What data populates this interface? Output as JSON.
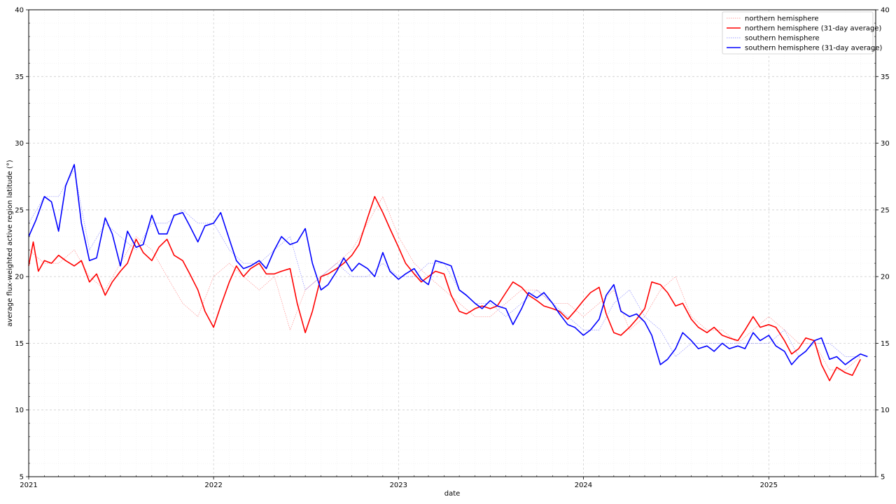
{
  "chart_data": {
    "type": "line",
    "title": "",
    "xlabel": "date",
    "ylabel": "average flux-weighted active region latitude (°)",
    "xlim": [
      "2021-01-01",
      "2025-07-31"
    ],
    "ylim": [
      5,
      40
    ],
    "x_ticks": [
      "2021",
      "2022",
      "2023",
      "2024",
      "2025"
    ],
    "y_ticks": [
      5,
      10,
      15,
      20,
      25,
      30,
      35,
      40
    ],
    "grid": true,
    "right_axis_duplicate": true,
    "legend_position": "top-right",
    "series": [
      {
        "name": "northern hemisphere",
        "color": "#ff0000",
        "style": "dotted-thin",
        "x": [
          "2021-01-01",
          "2021-02-01",
          "2021-03-01",
          "2021-04-01",
          "2021-05-01",
          "2021-06-01",
          "2021-07-01",
          "2021-08-01",
          "2021-09-01",
          "2021-10-01",
          "2021-11-01",
          "2021-12-01",
          "2022-01-01",
          "2022-02-01",
          "2022-03-01",
          "2022-04-01",
          "2022-05-01",
          "2022-06-01",
          "2022-07-01",
          "2022-08-01",
          "2022-09-01",
          "2022-10-01",
          "2022-11-01",
          "2022-12-01",
          "2023-01-01",
          "2023-02-01",
          "2023-03-01",
          "2023-04-01",
          "2023-05-01",
          "2023-06-01",
          "2023-07-01",
          "2023-08-01",
          "2023-09-01",
          "2023-10-01",
          "2023-11-01",
          "2023-12-01",
          "2024-01-01",
          "2024-02-01",
          "2024-03-01",
          "2024-04-01",
          "2024-05-01",
          "2024-06-01",
          "2024-07-01",
          "2024-08-01",
          "2024-09-01",
          "2024-10-01",
          "2024-11-01",
          "2024-12-01",
          "2025-01-01",
          "2025-02-01",
          "2025-03-01",
          "2025-04-01",
          "2025-05-01",
          "2025-06-01",
          "2025-07-01"
        ],
        "values": [
          22,
          21,
          21,
          22,
          20,
          19,
          21,
          23,
          22,
          20,
          18,
          17,
          20,
          21,
          20,
          19,
          20,
          16,
          19,
          20,
          21,
          22,
          24,
          26,
          23,
          21,
          20,
          19,
          18,
          17,
          17,
          18,
          19,
          19,
          18,
          18,
          17,
          18,
          19,
          16,
          17,
          19,
          20,
          17,
          16,
          16,
          15,
          16,
          17,
          16,
          15,
          15,
          13,
          13,
          14
        ]
      },
      {
        "name": "northern hemisphere (31-day average)",
        "color": "#ff0000",
        "style": "solid",
        "x": [
          "2021-01-01",
          "2021-01-10",
          "2021-01-20",
          "2021-02-01",
          "2021-02-15",
          "2021-03-01",
          "2021-03-15",
          "2021-04-01",
          "2021-04-15",
          "2021-05-01",
          "2021-05-15",
          "2021-06-01",
          "2021-06-15",
          "2021-07-01",
          "2021-07-15",
          "2021-08-01",
          "2021-08-15",
          "2021-09-01",
          "2021-09-15",
          "2021-10-01",
          "2021-10-15",
          "2021-11-01",
          "2021-11-15",
          "2021-12-01",
          "2021-12-15",
          "2022-01-01",
          "2022-01-15",
          "2022-02-01",
          "2022-02-15",
          "2022-03-01",
          "2022-03-15",
          "2022-04-01",
          "2022-04-15",
          "2022-05-01",
          "2022-05-15",
          "2022-06-01",
          "2022-06-15",
          "2022-07-01",
          "2022-07-15",
          "2022-08-01",
          "2022-08-15",
          "2022-09-01",
          "2022-09-15",
          "2022-10-01",
          "2022-10-15",
          "2022-11-01",
          "2022-11-15",
          "2022-12-01",
          "2022-12-15",
          "2023-01-01",
          "2023-01-15",
          "2023-02-01",
          "2023-02-15",
          "2023-03-01",
          "2023-03-15",
          "2023-04-01",
          "2023-04-15",
          "2023-05-01",
          "2023-05-15",
          "2023-06-01",
          "2023-06-15",
          "2023-07-01",
          "2023-07-15",
          "2023-08-01",
          "2023-08-15",
          "2023-09-01",
          "2023-09-15",
          "2023-10-01",
          "2023-10-15",
          "2023-11-01",
          "2023-11-15",
          "2023-12-01",
          "2023-12-15",
          "2024-01-01",
          "2024-01-15",
          "2024-02-01",
          "2024-02-15",
          "2024-03-01",
          "2024-03-15",
          "2024-04-01",
          "2024-04-15",
          "2024-05-01",
          "2024-05-15",
          "2024-06-01",
          "2024-06-15",
          "2024-07-01",
          "2024-07-15",
          "2024-08-01",
          "2024-08-15",
          "2024-09-01",
          "2024-09-15",
          "2024-10-01",
          "2024-10-15",
          "2024-11-01",
          "2024-11-15",
          "2024-12-01",
          "2024-12-15",
          "2025-01-01",
          "2025-01-15",
          "2025-02-01",
          "2025-02-15",
          "2025-03-01",
          "2025-03-15",
          "2025-04-01",
          "2025-04-15",
          "2025-05-01",
          "2025-05-15",
          "2025-06-01",
          "2025-06-15",
          "2025-07-01"
        ],
        "values": [
          20.8,
          22.6,
          20.4,
          21.2,
          21.0,
          21.6,
          21.2,
          20.8,
          21.2,
          19.6,
          20.2,
          18.6,
          19.6,
          20.4,
          21.0,
          22.8,
          21.8,
          21.2,
          22.2,
          22.8,
          21.6,
          21.2,
          20.2,
          19.0,
          17.4,
          16.2,
          17.8,
          19.6,
          20.8,
          20.0,
          20.6,
          21.0,
          20.2,
          20.2,
          20.4,
          20.6,
          18.0,
          15.8,
          17.4,
          20.0,
          20.2,
          20.6,
          21.0,
          21.6,
          22.4,
          24.4,
          26.0,
          24.8,
          23.6,
          22.2,
          21.0,
          20.2,
          19.6,
          20.0,
          20.4,
          20.2,
          18.6,
          17.4,
          17.2,
          17.6,
          17.8,
          17.6,
          17.8,
          18.8,
          19.6,
          19.2,
          18.6,
          18.2,
          17.8,
          17.6,
          17.4,
          16.8,
          17.4,
          18.2,
          18.8,
          19.2,
          17.2,
          15.8,
          15.6,
          16.2,
          16.8,
          17.6,
          19.6,
          19.4,
          18.8,
          17.8,
          18.0,
          16.8,
          16.2,
          15.8,
          16.2,
          15.6,
          15.4,
          15.2,
          16.0,
          17.0,
          16.2,
          16.4,
          16.2,
          15.2,
          14.2,
          14.6,
          15.4,
          15.2,
          13.4,
          12.2,
          13.2,
          12.8,
          12.6,
          13.8
        ]
      },
      {
        "name": "southern hemisphere",
        "color": "#0000ff",
        "style": "dotted-thin",
        "x": [
          "2021-01-01",
          "2021-02-01",
          "2021-03-01",
          "2021-04-01",
          "2021-05-01",
          "2021-06-01",
          "2021-07-01",
          "2021-08-01",
          "2021-09-01",
          "2021-10-01",
          "2021-11-01",
          "2021-12-01",
          "2022-01-01",
          "2022-02-01",
          "2022-03-01",
          "2022-04-01",
          "2022-05-01",
          "2022-06-01",
          "2022-07-01",
          "2022-08-01",
          "2022-09-01",
          "2022-10-01",
          "2022-11-01",
          "2022-12-01",
          "2023-01-01",
          "2023-02-01",
          "2023-03-01",
          "2023-04-01",
          "2023-05-01",
          "2023-06-01",
          "2023-07-01",
          "2023-08-01",
          "2023-09-01",
          "2023-10-01",
          "2023-11-01",
          "2023-12-01",
          "2024-01-01",
          "2024-02-01",
          "2024-03-01",
          "2024-04-01",
          "2024-05-01",
          "2024-06-01",
          "2024-07-01",
          "2024-08-01",
          "2024-09-01",
          "2024-10-01",
          "2024-11-01",
          "2024-12-01",
          "2025-01-01",
          "2025-02-01",
          "2025-03-01",
          "2025-04-01",
          "2025-05-01",
          "2025-06-01",
          "2025-07-01"
        ],
        "values": [
          24,
          26,
          26,
          28,
          22,
          24,
          23,
          22,
          24,
          24,
          25,
          24,
          24,
          22,
          21,
          21,
          22,
          23,
          19,
          20,
          21,
          20,
          20,
          21,
          20,
          20,
          21,
          21,
          19,
          18,
          18,
          17,
          18,
          19,
          18,
          17,
          16,
          16,
          18,
          19,
          17,
          16,
          14,
          15,
          15,
          15,
          15,
          15,
          15,
          16,
          14,
          15,
          15,
          14,
          14
        ]
      },
      {
        "name": "southern hemisphere (31-day average)",
        "color": "#0000ff",
        "style": "solid",
        "x": [
          "2021-01-01",
          "2021-01-15",
          "2021-02-01",
          "2021-02-15",
          "2021-03-01",
          "2021-03-15",
          "2021-04-01",
          "2021-04-15",
          "2021-05-01",
          "2021-05-15",
          "2021-06-01",
          "2021-06-15",
          "2021-07-01",
          "2021-07-15",
          "2021-08-01",
          "2021-08-15",
          "2021-09-01",
          "2021-09-15",
          "2021-10-01",
          "2021-10-15",
          "2021-11-01",
          "2021-11-15",
          "2021-12-01",
          "2021-12-15",
          "2022-01-01",
          "2022-01-15",
          "2022-02-01",
          "2022-02-15",
          "2022-03-01",
          "2022-03-15",
          "2022-04-01",
          "2022-04-15",
          "2022-05-01",
          "2022-05-15",
          "2022-06-01",
          "2022-06-15",
          "2022-07-01",
          "2022-07-15",
          "2022-08-01",
          "2022-08-15",
          "2022-09-01",
          "2022-09-15",
          "2022-10-01",
          "2022-10-15",
          "2022-11-01",
          "2022-11-15",
          "2022-12-01",
          "2022-12-15",
          "2023-01-01",
          "2023-01-15",
          "2023-02-01",
          "2023-02-15",
          "2023-03-01",
          "2023-03-15",
          "2023-04-01",
          "2023-04-15",
          "2023-05-01",
          "2023-05-15",
          "2023-06-01",
          "2023-06-15",
          "2023-07-01",
          "2023-07-15",
          "2023-08-01",
          "2023-08-15",
          "2023-09-01",
          "2023-09-15",
          "2023-10-01",
          "2023-10-15",
          "2023-11-01",
          "2023-11-15",
          "2023-12-01",
          "2023-12-15",
          "2024-01-01",
          "2024-01-15",
          "2024-02-01",
          "2024-02-15",
          "2024-03-01",
          "2024-03-15",
          "2024-04-01",
          "2024-04-15",
          "2024-05-01",
          "2024-05-15",
          "2024-06-01",
          "2024-06-15",
          "2024-07-01",
          "2024-07-15",
          "2024-08-01",
          "2024-08-15",
          "2024-09-01",
          "2024-09-15",
          "2024-10-01",
          "2024-10-15",
          "2024-11-01",
          "2024-11-15",
          "2024-12-01",
          "2024-12-15",
          "2025-01-01",
          "2025-01-15",
          "2025-02-01",
          "2025-02-15",
          "2025-03-01",
          "2025-03-15",
          "2025-04-01",
          "2025-04-15",
          "2025-05-01",
          "2025-05-15",
          "2025-06-01",
          "2025-06-15",
          "2025-07-01",
          "2025-07-15"
        ],
        "values": [
          23.0,
          24.2,
          26.0,
          25.6,
          23.4,
          26.8,
          28.4,
          24.0,
          21.2,
          21.4,
          24.4,
          23.2,
          20.8,
          23.4,
          22.2,
          22.4,
          24.6,
          23.2,
          23.2,
          24.6,
          24.8,
          23.8,
          22.6,
          23.8,
          24.0,
          24.8,
          22.8,
          21.2,
          20.6,
          20.8,
          21.2,
          20.6,
          22.0,
          23.0,
          22.4,
          22.6,
          23.6,
          21.0,
          19.0,
          19.4,
          20.4,
          21.4,
          20.4,
          21.0,
          20.6,
          20.0,
          21.8,
          20.4,
          19.8,
          20.2,
          20.6,
          19.8,
          19.4,
          21.2,
          21.0,
          20.8,
          19.0,
          18.6,
          18.0,
          17.6,
          18.2,
          17.8,
          17.6,
          16.4,
          17.6,
          18.8,
          18.4,
          18.8,
          18.0,
          17.2,
          16.4,
          16.2,
          15.6,
          16.0,
          16.8,
          18.6,
          19.4,
          17.4,
          17.0,
          17.2,
          16.6,
          15.6,
          13.4,
          13.8,
          14.6,
          15.8,
          15.2,
          14.6,
          14.8,
          14.4,
          15.0,
          14.6,
          14.8,
          14.6,
          15.8,
          15.2,
          15.6,
          14.8,
          14.4,
          13.4,
          14.0,
          14.4,
          15.2,
          15.4,
          13.8,
          14.0,
          13.4,
          13.8,
          14.2,
          14.0
        ]
      }
    ]
  }
}
